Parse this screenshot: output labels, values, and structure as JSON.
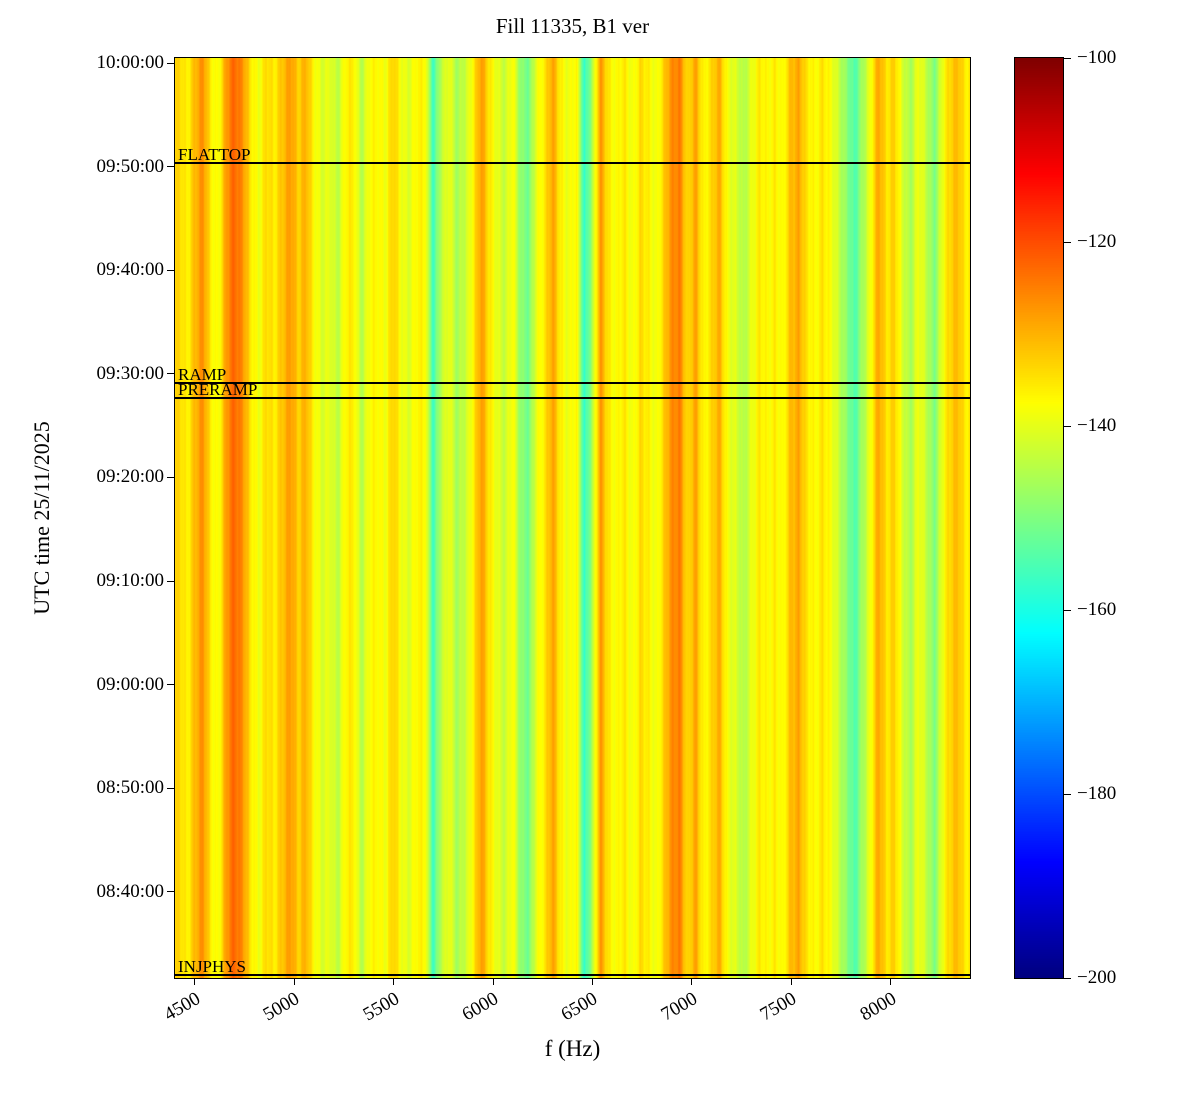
{
  "chart_data": {
    "type": "heatmap",
    "title": "Fill 11335, B1 ver",
    "xlabel": "f (Hz)",
    "ylabel": "UTC time 25/11/2025",
    "colormap": "jet",
    "clim": [
      -200,
      -100
    ],
    "colorbar_ticks": [
      "−100",
      "−120",
      "−140",
      "−160",
      "−180",
      "−200"
    ],
    "x_range": [
      4400,
      8400
    ],
    "x_ticks": [
      "4500",
      "5000",
      "5500",
      "6000",
      "6500",
      "7000",
      "7500",
      "8000"
    ],
    "y_time_end": "10:00:30",
    "y_time_start": "08:31:40",
    "y_ticks": [
      "10:00:00",
      "09:50:00",
      "09:40:00",
      "09:30:00",
      "09:20:00",
      "09:10:00",
      "09:00:00",
      "08:50:00",
      "08:40:00"
    ],
    "values_db_per_column": [
      -134,
      -137,
      -130,
      -127,
      -136,
      -138,
      -128,
      -122,
      -126,
      -136,
      -139,
      -133,
      -137,
      -131,
      -127,
      -134,
      -129,
      -137,
      -142,
      -139,
      -144,
      -137,
      -135,
      -145,
      -138,
      -136,
      -139,
      -133,
      -138,
      -141,
      -137,
      -136,
      -157,
      -144,
      -138,
      -147,
      -143,
      -136,
      -128,
      -135,
      -139,
      -144,
      -137,
      -148,
      -152,
      -139,
      -135,
      -129,
      -136,
      -139,
      -137,
      -158,
      -145,
      -128,
      -135,
      -138,
      -136,
      -139,
      -134,
      -137,
      -139,
      -133,
      -127,
      -124,
      -135,
      -129,
      -137,
      -134,
      -130,
      -138,
      -141,
      -146,
      -139,
      -136,
      -138,
      -135,
      -139,
      -131,
      -128,
      -136,
      -138,
      -134,
      -139,
      -143,
      -148,
      -156,
      -146,
      -138,
      -129,
      -135,
      -132,
      -142,
      -146,
      -138,
      -144,
      -150,
      -139,
      -134,
      -130,
      -136
    ],
    "events": [
      {
        "label": "FLATTOP",
        "time": "09:50:20"
      },
      {
        "label": "RAMP",
        "time": "09:29:10"
      },
      {
        "label": "PRERAMP",
        "time": "09:27:40"
      },
      {
        "label": "INJPHYS",
        "time": "08:31:55"
      }
    ]
  }
}
